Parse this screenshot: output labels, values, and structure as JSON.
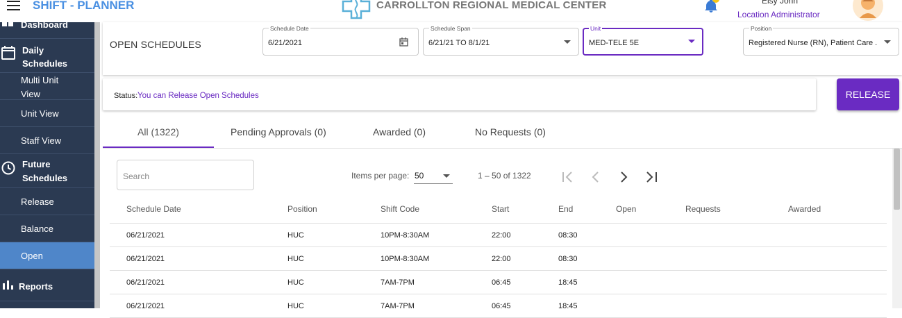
{
  "app": {
    "title": "SHIFT - PLANNER",
    "hospital": "CARROLLTON REGIONAL MEDICAL CENTER",
    "user_name": "Elsy John",
    "user_role": "Location Administrator"
  },
  "sidebar": {
    "items": [
      {
        "label": "Dashboard"
      },
      {
        "label": "Daily Schedules",
        "icon": "calendar-icon"
      },
      {
        "label": "Multi Unit View"
      },
      {
        "label": "Unit View"
      },
      {
        "label": "Staff View"
      },
      {
        "label": "Future Schedules",
        "icon": "clock-icon"
      },
      {
        "label": "Release"
      },
      {
        "label": "Balance"
      },
      {
        "label": "Open",
        "active": true
      },
      {
        "label": "Reports",
        "icon": "bar-chart-icon"
      }
    ]
  },
  "page": {
    "title": "OPEN SCHEDULES"
  },
  "filters": {
    "schedule_date": {
      "label": "Schedule Date",
      "value": "6/21/2021"
    },
    "schedule_span": {
      "label": "Schedule Span",
      "value": "6/21/21 TO 8/1/21"
    },
    "unit": {
      "label": "Unit",
      "value": "MED-TELE 5E"
    },
    "position": {
      "label": "Position",
      "value": "Registered Nurse (RN), Patient Care ..."
    }
  },
  "status": {
    "label": "Status:",
    "value": "You can Release Open Schedules"
  },
  "release_label": "RELEASE",
  "tabs": [
    {
      "label": "All (1322)",
      "active": true
    },
    {
      "label": "Pending Approvals (0)"
    },
    {
      "label": "Awarded (0)"
    },
    {
      "label": "No Requests (0)"
    }
  ],
  "search": {
    "placeholder": "Search"
  },
  "pagination": {
    "items_per_page_label": "Items per page:",
    "items_per_page": "50",
    "range": "1 – 50 of 1322"
  },
  "table": {
    "headers": [
      "Schedule Date",
      "Position",
      "Shift Code",
      "Start",
      "End",
      "Open",
      "Requests",
      "Awarded"
    ],
    "rows": [
      [
        "06/21/2021",
        "HUC",
        "10PM-8:30AM",
        "22:00",
        "08:30",
        "",
        "",
        ""
      ],
      [
        "06/21/2021",
        "HUC",
        "10PM-8:30AM",
        "22:00",
        "08:30",
        "",
        "",
        ""
      ],
      [
        "06/21/2021",
        "HUC",
        "7AM-7PM",
        "06:45",
        "18:45",
        "",
        "",
        ""
      ],
      [
        "06/21/2021",
        "HUC",
        "7AM-7PM",
        "06:45",
        "18:45",
        "",
        "",
        ""
      ]
    ]
  },
  "colors": {
    "accent": "#6a2bc2",
    "sidebar_bg": "#2b3a52",
    "sidebar_active": "#4f86c9",
    "title_blue": "#4a90e2"
  }
}
